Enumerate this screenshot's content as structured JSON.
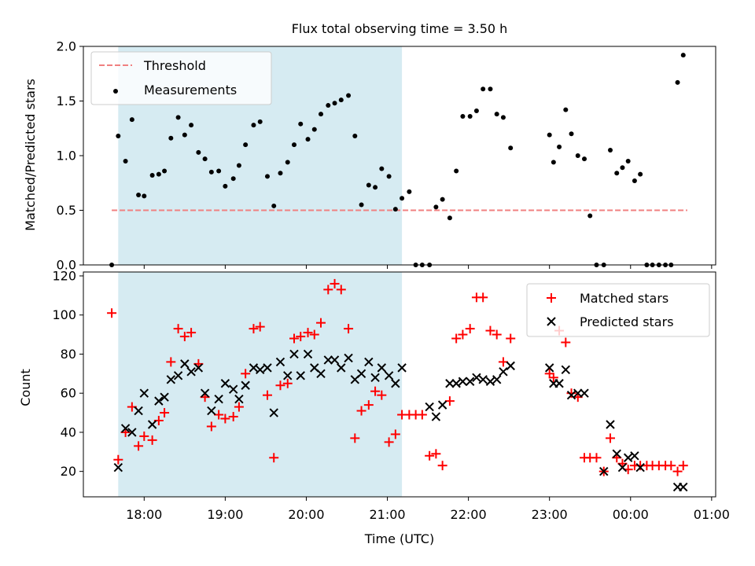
{
  "colors": {
    "shade": "#add8e6",
    "threshold": "#f08080",
    "measurement": "#000000",
    "matched": "#ff0000",
    "predicted": "#000000"
  },
  "chart_data": [
    {
      "type": "scatter",
      "title": "Flux total observing time = 3.50 h",
      "xlabel": "",
      "ylabel": "Matched/Predicted stars",
      "xlim": [
        17.25,
        25.05
      ],
      "ylim": [
        0,
        2.0
      ],
      "yticks": [
        0.0,
        0.5,
        1.0,
        1.5,
        2.0
      ],
      "ytick_labels": [
        "0.0",
        "0.5",
        "1.0",
        "1.5",
        "2.0"
      ],
      "xticks": [
        18,
        19,
        20,
        21,
        22,
        23,
        24,
        25
      ],
      "observing_window": [
        17.68,
        21.18
      ],
      "legend": {
        "position": "top-left",
        "threshold_label": "Threshold",
        "measurements_label": "Measurements"
      },
      "threshold": {
        "value": 0.5,
        "x": [
          17.6,
          24.7
        ]
      },
      "series": [
        {
          "name": "Measurements",
          "x": [
            17.6,
            17.68,
            17.77,
            17.85,
            17.93,
            18.0,
            18.1,
            18.18,
            18.25,
            18.33,
            18.42,
            18.5,
            18.58,
            18.67,
            18.75,
            18.83,
            18.92,
            19.0,
            19.1,
            19.17,
            19.25,
            19.35,
            19.43,
            19.52,
            19.6,
            19.68,
            19.77,
            19.85,
            19.93,
            20.02,
            20.1,
            20.18,
            20.27,
            20.35,
            20.43,
            20.52,
            20.6,
            20.68,
            20.77,
            20.85,
            20.93,
            21.02,
            21.1,
            21.18,
            21.27,
            21.35,
            21.43,
            21.52,
            21.6,
            21.68,
            21.77,
            21.85,
            21.93,
            22.02,
            22.1,
            22.18,
            22.27,
            22.35,
            22.43,
            22.52,
            23.0,
            23.05,
            23.12,
            23.2,
            23.27,
            23.35,
            23.43,
            23.5,
            23.58,
            23.67,
            23.75,
            23.83,
            23.9,
            23.97,
            24.05,
            24.12,
            24.2,
            24.27,
            24.35,
            24.43,
            24.5,
            24.58,
            24.65
          ],
          "y": [
            0.0,
            1.18,
            0.95,
            1.33,
            0.64,
            0.63,
            0.82,
            0.83,
            0.86,
            1.16,
            1.35,
            1.19,
            1.28,
            1.03,
            0.97,
            0.85,
            0.86,
            0.72,
            0.79,
            0.91,
            1.1,
            1.28,
            1.31,
            0.81,
            0.54,
            0.84,
            0.94,
            1.1,
            1.29,
            1.15,
            1.24,
            1.38,
            1.46,
            1.48,
            1.51,
            1.55,
            1.18,
            0.55,
            0.73,
            0.71,
            0.88,
            0.81,
            0.51,
            0.61,
            0.67,
            0.0,
            0.0,
            0.0,
            0.53,
            0.6,
            0.43,
            0.86,
            1.36,
            1.36,
            1.41,
            1.61,
            1.61,
            1.38,
            1.35,
            1.07,
            1.19,
            0.94,
            1.08,
            1.42,
            1.2,
            1.0,
            0.97,
            0.45,
            0.0,
            0.0,
            1.05,
            0.84,
            0.89,
            0.95,
            0.77,
            0.83,
            0.0,
            0.0,
            0.0,
            0.0,
            0.0,
            1.67,
            1.92
          ]
        }
      ]
    },
    {
      "type": "scatter",
      "title": "",
      "xlabel": "Time (UTC)",
      "ylabel": "Count",
      "xlim": [
        17.25,
        25.05
      ],
      "ylim": [
        7,
        122
      ],
      "yticks": [
        20,
        40,
        60,
        80,
        100,
        120
      ],
      "ytick_labels": [
        "20",
        "40",
        "60",
        "80",
        "100",
        "120"
      ],
      "xticks": [
        18,
        19,
        20,
        21,
        22,
        23,
        24,
        25
      ],
      "xtick_labels": [
        "18:00",
        "19:00",
        "20:00",
        "21:00",
        "22:00",
        "23:00",
        "00:00",
        "01:00"
      ],
      "observing_window": [
        17.68,
        21.18
      ],
      "legend": {
        "position": "top-right",
        "matched_label": "Matched stars",
        "predicted_label": "Predicted stars"
      },
      "series": [
        {
          "name": "Matched stars",
          "marker": "+",
          "x": [
            17.6,
            17.68,
            17.77,
            17.85,
            17.93,
            18.0,
            18.1,
            18.18,
            18.25,
            18.33,
            18.42,
            18.5,
            18.58,
            18.67,
            18.75,
            18.83,
            18.92,
            19.0,
            19.1,
            19.17,
            19.25,
            19.35,
            19.43,
            19.52,
            19.6,
            19.68,
            19.77,
            19.85,
            19.93,
            20.02,
            20.1,
            20.18,
            20.27,
            20.35,
            20.43,
            20.52,
            20.6,
            20.68,
            20.77,
            20.85,
            20.93,
            21.02,
            21.1,
            21.18,
            21.27,
            21.35,
            21.43,
            21.52,
            21.6,
            21.68,
            21.77,
            21.85,
            21.93,
            22.02,
            22.1,
            22.18,
            22.27,
            22.35,
            22.43,
            22.52,
            23.0,
            23.05,
            23.12,
            23.2,
            23.27,
            23.35,
            23.43,
            23.5,
            23.58,
            23.67,
            23.75,
            23.83,
            23.9,
            23.97,
            24.05,
            24.12,
            24.2,
            24.27,
            24.35,
            24.43,
            24.5,
            24.58,
            24.65
          ],
          "y": [
            101,
            26,
            40,
            53,
            33,
            38,
            36,
            46,
            50,
            76,
            93,
            89,
            91,
            75,
            58,
            43,
            49,
            47,
            48,
            53,
            70,
            93,
            94,
            59,
            27,
            64,
            65,
            88,
            89,
            91,
            90,
            96,
            113,
            116,
            113,
            93,
            37,
            51,
            54,
            61,
            59,
            35,
            39,
            49,
            49,
            49,
            49,
            28,
            29,
            23,
            56,
            88,
            90,
            93,
            109,
            109,
            92,
            90,
            76,
            88,
            70,
            68,
            92,
            86,
            60,
            58,
            27,
            27,
            27,
            20,
            37,
            27,
            24,
            21,
            23,
            23,
            23,
            23,
            23,
            23,
            23,
            20,
            23
          ]
        },
        {
          "name": "Predicted stars",
          "marker": "x",
          "x": [
            17.68,
            17.77,
            17.85,
            17.93,
            18.0,
            18.1,
            18.18,
            18.25,
            18.33,
            18.42,
            18.5,
            18.58,
            18.67,
            18.75,
            18.83,
            18.92,
            19.0,
            19.1,
            19.17,
            19.25,
            19.35,
            19.43,
            19.52,
            19.6,
            19.68,
            19.77,
            19.85,
            19.93,
            20.02,
            20.1,
            20.18,
            20.27,
            20.35,
            20.43,
            20.52,
            20.6,
            20.68,
            20.77,
            20.85,
            20.93,
            21.02,
            21.1,
            21.18,
            21.52,
            21.6,
            21.68,
            21.77,
            21.85,
            21.93,
            22.02,
            22.1,
            22.18,
            22.27,
            22.35,
            22.43,
            22.52,
            23.0,
            23.05,
            23.12,
            23.2,
            23.27,
            23.35,
            23.43,
            23.67,
            23.75,
            23.83,
            23.9,
            23.97,
            24.05,
            24.12,
            24.58,
            24.65
          ],
          "y": [
            22,
            42,
            40,
            51,
            60,
            44,
            56,
            58,
            67,
            69,
            75,
            71,
            73,
            60,
            51,
            57,
            65,
            62,
            57,
            64,
            73,
            72,
            73,
            50,
            76,
            69,
            80,
            69,
            80,
            73,
            70,
            77,
            77,
            73,
            78,
            67,
            70,
            76,
            68,
            73,
            69,
            65,
            73,
            53,
            48,
            54,
            65,
            65,
            66,
            66,
            68,
            67,
            66,
            67,
            71,
            74,
            73,
            65,
            65,
            72,
            59,
            60,
            60,
            20,
            44,
            29,
            22,
            27,
            28,
            22,
            12,
            12
          ]
        }
      ]
    }
  ]
}
